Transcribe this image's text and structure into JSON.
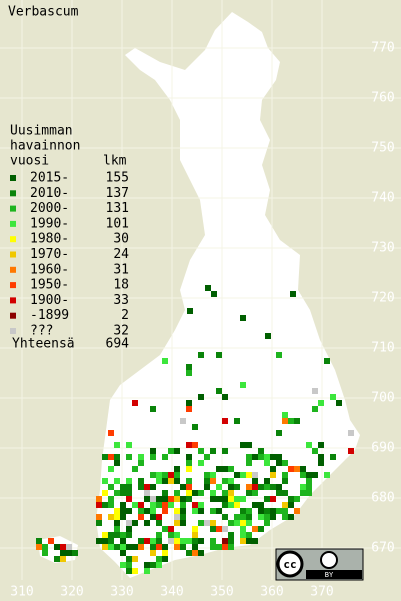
{
  "title": "Verbascum",
  "legend": {
    "heading": [
      "Uusimman",
      "havainnon",
      "vuosi"
    ],
    "count_heading": "lkm",
    "items": [
      {
        "label": "2015-",
        "count": 155,
        "color": "#005f00"
      },
      {
        "label": "2010-",
        "count": 137,
        "color": "#0a840a"
      },
      {
        "label": "2000-",
        "count": 131,
        "color": "#1eb41e"
      },
      {
        "label": "1990-",
        "count": 101,
        "color": "#3ce63c"
      },
      {
        "label": "1980-",
        "count": 30,
        "color": "#ffff00"
      },
      {
        "label": "1970-",
        "count": 24,
        "color": "#f0c800"
      },
      {
        "label": "1960-",
        "count": 31,
        "color": "#ff7800"
      },
      {
        "label": "1950-",
        "count": 18,
        "color": "#ff3c00"
      },
      {
        "label": "1900-",
        "count": 33,
        "color": "#d20000"
      },
      {
        "label": "-1899",
        "count": 2,
        "color": "#8c0000"
      },
      {
        "label": "???",
        "count": 32,
        "color": "#c8c8c8"
      }
    ],
    "total_label": "Yhteensä",
    "total": 694
  },
  "xticks": [
    310,
    320,
    330,
    340,
    350,
    360,
    370
  ],
  "yticks": [
    670,
    680,
    690,
    700,
    710,
    720,
    730,
    740,
    750,
    760,
    770
  ],
  "license": {
    "logo": "cc",
    "by": "BY"
  }
}
